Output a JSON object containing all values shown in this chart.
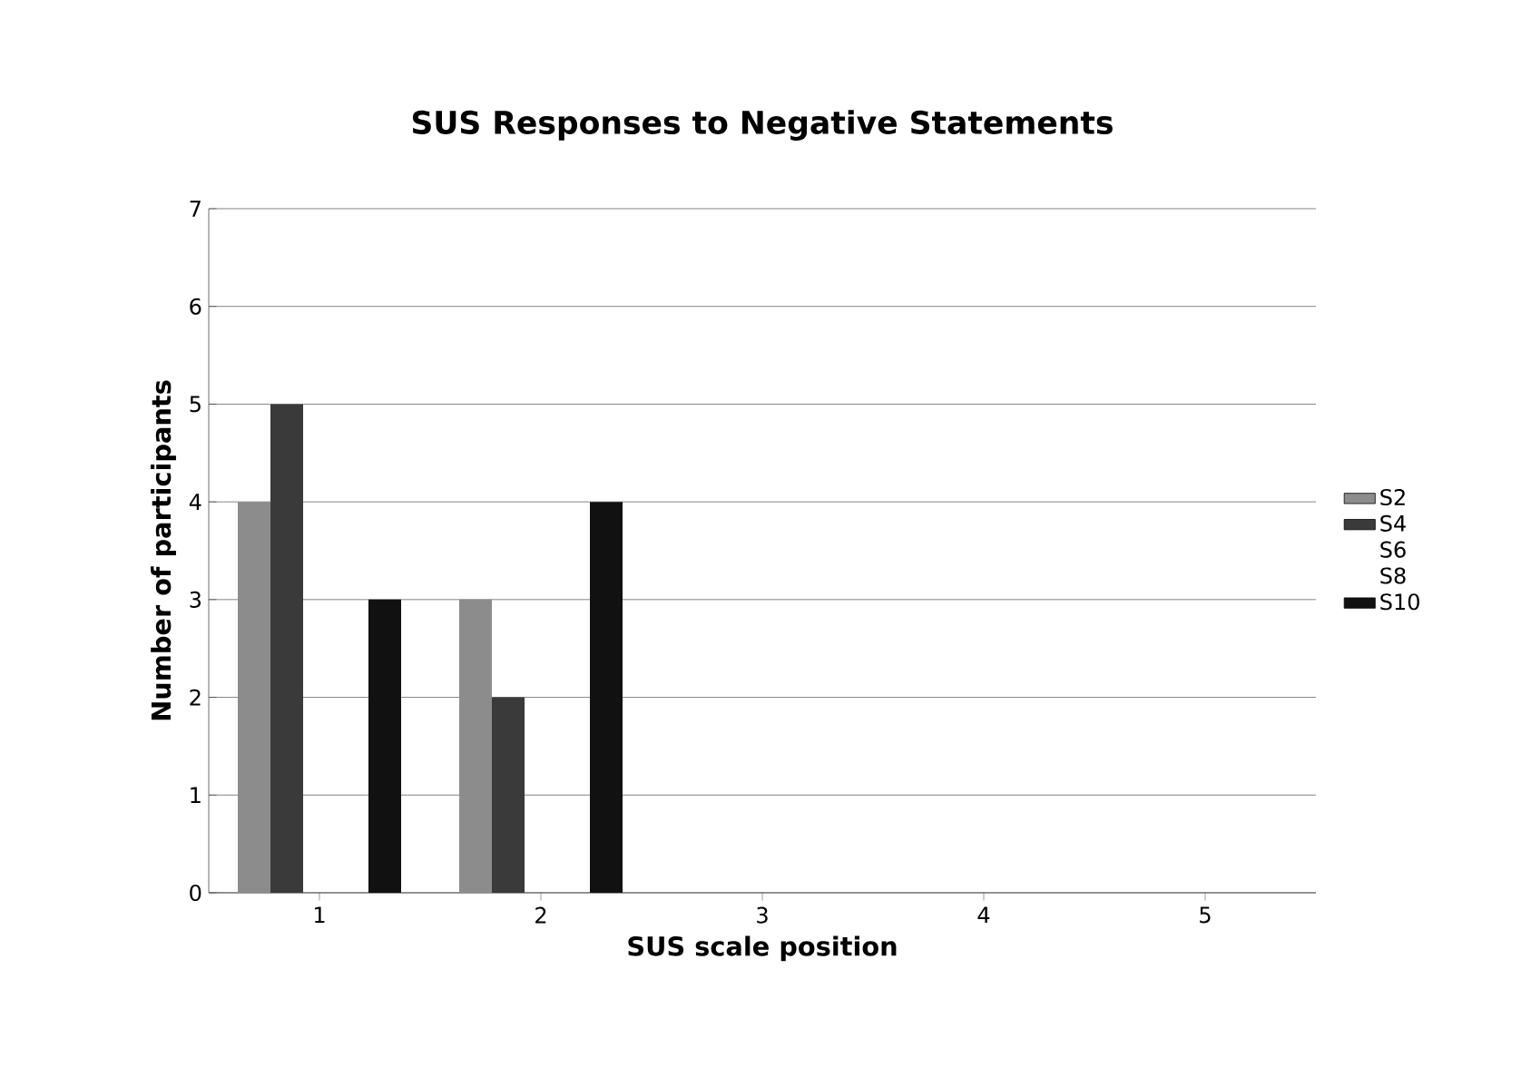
{
  "chart_data": {
    "type": "bar",
    "title": "SUS Responses to Negative Statements",
    "xlabel": "SUS scale position",
    "ylabel": "Number of participants",
    "categories": [
      "1",
      "2",
      "3",
      "4",
      "5"
    ],
    "series": [
      {
        "name": "S2",
        "color": "#8c8c8c",
        "values": [
          4,
          3,
          0,
          0,
          0
        ]
      },
      {
        "name": "S4",
        "color": "#3a3a3a",
        "values": [
          5,
          2,
          0,
          0,
          0
        ]
      },
      {
        "name": "S6",
        "values": [
          null,
          null,
          0,
          0,
          0
        ]
      },
      {
        "name": "S8",
        "values": [
          null,
          null,
          0,
          0,
          0
        ]
      },
      {
        "name": "S10",
        "color": "#111111",
        "values": [
          3,
          4,
          0,
          0,
          0
        ]
      }
    ],
    "ylim": [
      0,
      7
    ],
    "yticks": [
      0,
      1,
      2,
      3,
      4,
      5,
      6,
      7
    ],
    "grid": "y",
    "legend": "right"
  }
}
